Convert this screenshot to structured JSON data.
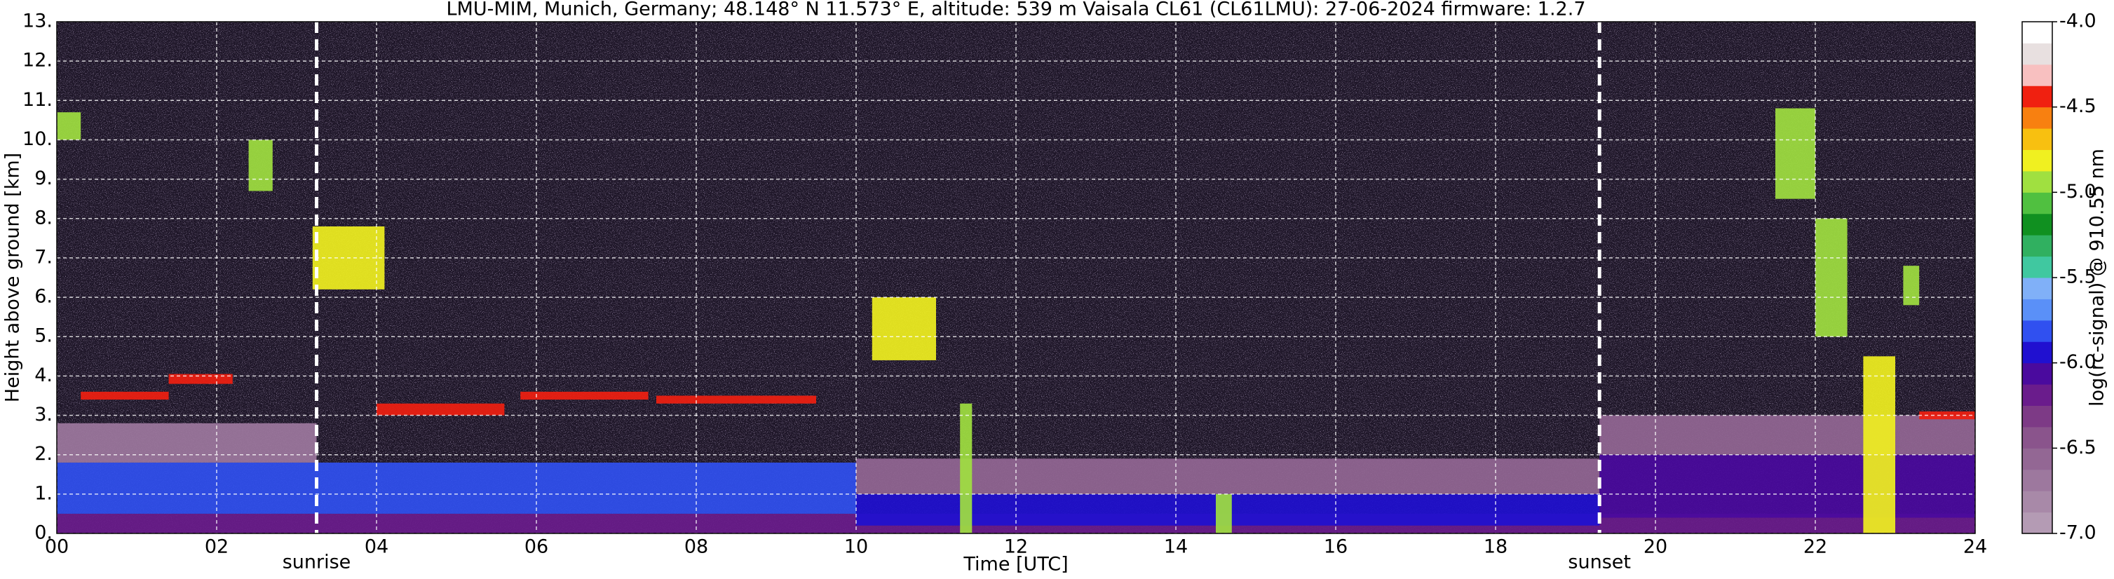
{
  "chart_data": {
    "type": "heatmap",
    "title": "LMU-MIM, Munich, Germany; 48.148° N 11.573° E, altitude: 539 m    Vaisala CL61 (CL61LMU): 27-06-2024    firmware: 1.2.7",
    "xlabel": "Time [UTC]",
    "ylabel": "Height above ground [km]",
    "colorbar_label": "log(rc-signal) @ 910.55 nm",
    "xlim": [
      0,
      24
    ],
    "ylim": [
      0,
      13
    ],
    "xticks": [
      {
        "value": 0,
        "label": "00"
      },
      {
        "value": 2,
        "label": "02"
      },
      {
        "value": 4,
        "label": "04"
      },
      {
        "value": 6,
        "label": "06"
      },
      {
        "value": 8,
        "label": "08"
      },
      10,
      12,
      14,
      16,
      18,
      20,
      22,
      24
    ],
    "yticks": [
      {
        "value": 0,
        "label": "0."
      },
      {
        "value": 1,
        "label": "1."
      },
      {
        "value": 2,
        "label": "2."
      },
      {
        "value": 3,
        "label": "3."
      },
      {
        "value": 4,
        "label": "4."
      },
      {
        "value": 5,
        "label": "5."
      },
      {
        "value": 6,
        "label": "6."
      },
      {
        "value": 7,
        "label": "7."
      },
      {
        "value": 8,
        "label": "8."
      },
      {
        "value": 9,
        "label": "9."
      },
      {
        "value": 10,
        "label": "10."
      },
      {
        "value": 11,
        "label": "11."
      },
      {
        "value": 12,
        "label": "12."
      },
      {
        "value": 13,
        "label": "13."
      }
    ],
    "clim": [
      -7,
      -4
    ],
    "cticks": [
      {
        "value": -4,
        "label": "-4.0"
      },
      -4.5,
      {
        "value": -5,
        "label": "-5.0"
      },
      -5.5,
      {
        "value": -6,
        "label": "-6.0"
      },
      -6.5,
      {
        "value": -7,
        "label": "-7.0"
      }
    ],
    "colormap": [
      "#b49bb4",
      "#a889a8",
      "#9d789e",
      "#936794",
      "#8a548c",
      "#7d3a86",
      "#6a1c8c",
      "#4a0a9e",
      "#2010d0",
      "#3050f0",
      "#5a90f8",
      "#80b0f8",
      "#40c8a0",
      "#30b060",
      "#109020",
      "#50c040",
      "#a0e040",
      "#f0f020",
      "#f8c010",
      "#f88010",
      "#f02010",
      "#f8c0c0",
      "#e8e0e0",
      "#ffffff"
    ],
    "grid": true,
    "markers": [
      {
        "x": 3.25,
        "label": "sunrise"
      },
      {
        "x": 19.3,
        "label": "sunset"
      }
    ],
    "features": [
      {
        "x": [
          0,
          24
        ],
        "y": [
          0,
          0.5
        ],
        "value": -6.2
      },
      {
        "x": [
          0,
          10
        ],
        "y": [
          0.5,
          1.8
        ],
        "value": -5.85
      },
      {
        "x": [
          10,
          19.3
        ],
        "y": [
          0.2,
          1.0
        ],
        "value": -6.0
      },
      {
        "x": [
          10,
          19.3
        ],
        "y": [
          1.0,
          1.9
        ],
        "value": -6.55
      },
      {
        "x": [
          19.3,
          24
        ],
        "y": [
          0.4,
          2.0
        ],
        "value": -6.05
      },
      {
        "x": [
          19.3,
          24
        ],
        "y": [
          2.0,
          3.0
        ],
        "value": -6.6
      },
      {
        "x": [
          0,
          3.25
        ],
        "y": [
          1.8,
          2.8
        ],
        "value": -6.75
      },
      {
        "x": [
          0.3,
          1.4
        ],
        "y": [
          3.4,
          3.6
        ],
        "value": -4.5
      },
      {
        "x": [
          1.4,
          2.2
        ],
        "y": [
          3.8,
          4.05
        ],
        "value": -4.5
      },
      {
        "x": [
          4.0,
          5.6
        ],
        "y": [
          3.0,
          3.3
        ],
        "value": -4.5
      },
      {
        "x": [
          5.8,
          7.4
        ],
        "y": [
          3.4,
          3.6
        ],
        "value": -4.5
      },
      {
        "x": [
          7.5,
          9.5
        ],
        "y": [
          3.3,
          3.5
        ],
        "value": -4.5
      },
      {
        "x": [
          3.2,
          4.1
        ],
        "y": [
          6.2,
          7.8
        ],
        "value": -4.85
      },
      {
        "x": [
          2.4,
          2.7
        ],
        "y": [
          8.7,
          10.0
        ],
        "value": -4.95
      },
      {
        "x": [
          0,
          0.3
        ],
        "y": [
          10.0,
          10.7
        ],
        "value": -4.95
      },
      {
        "x": [
          10.2,
          11.0
        ],
        "y": [
          4.4,
          6.0
        ],
        "value": -4.8
      },
      {
        "x": [
          11.3,
          11.45
        ],
        "y": [
          0,
          3.3
        ],
        "value": -4.9
      },
      {
        "x": [
          14.5,
          14.7
        ],
        "y": [
          0,
          1.0
        ],
        "value": -4.95
      },
      {
        "x": [
          22.6,
          23.0
        ],
        "y": [
          0,
          4.5
        ],
        "value": -4.8
      },
      {
        "x": [
          21.5,
          22.0
        ],
        "y": [
          8.5,
          10.8
        ],
        "value": -4.9
      },
      {
        "x": [
          22.0,
          22.4
        ],
        "y": [
          5.0,
          8.0
        ],
        "value": -5.0
      },
      {
        "x": [
          23.1,
          23.3
        ],
        "y": [
          5.8,
          6.8
        ],
        "value": -5.0
      },
      {
        "x": [
          23.3,
          24
        ],
        "y": [
          2.9,
          3.1
        ],
        "value": -4.5
      }
    ]
  }
}
